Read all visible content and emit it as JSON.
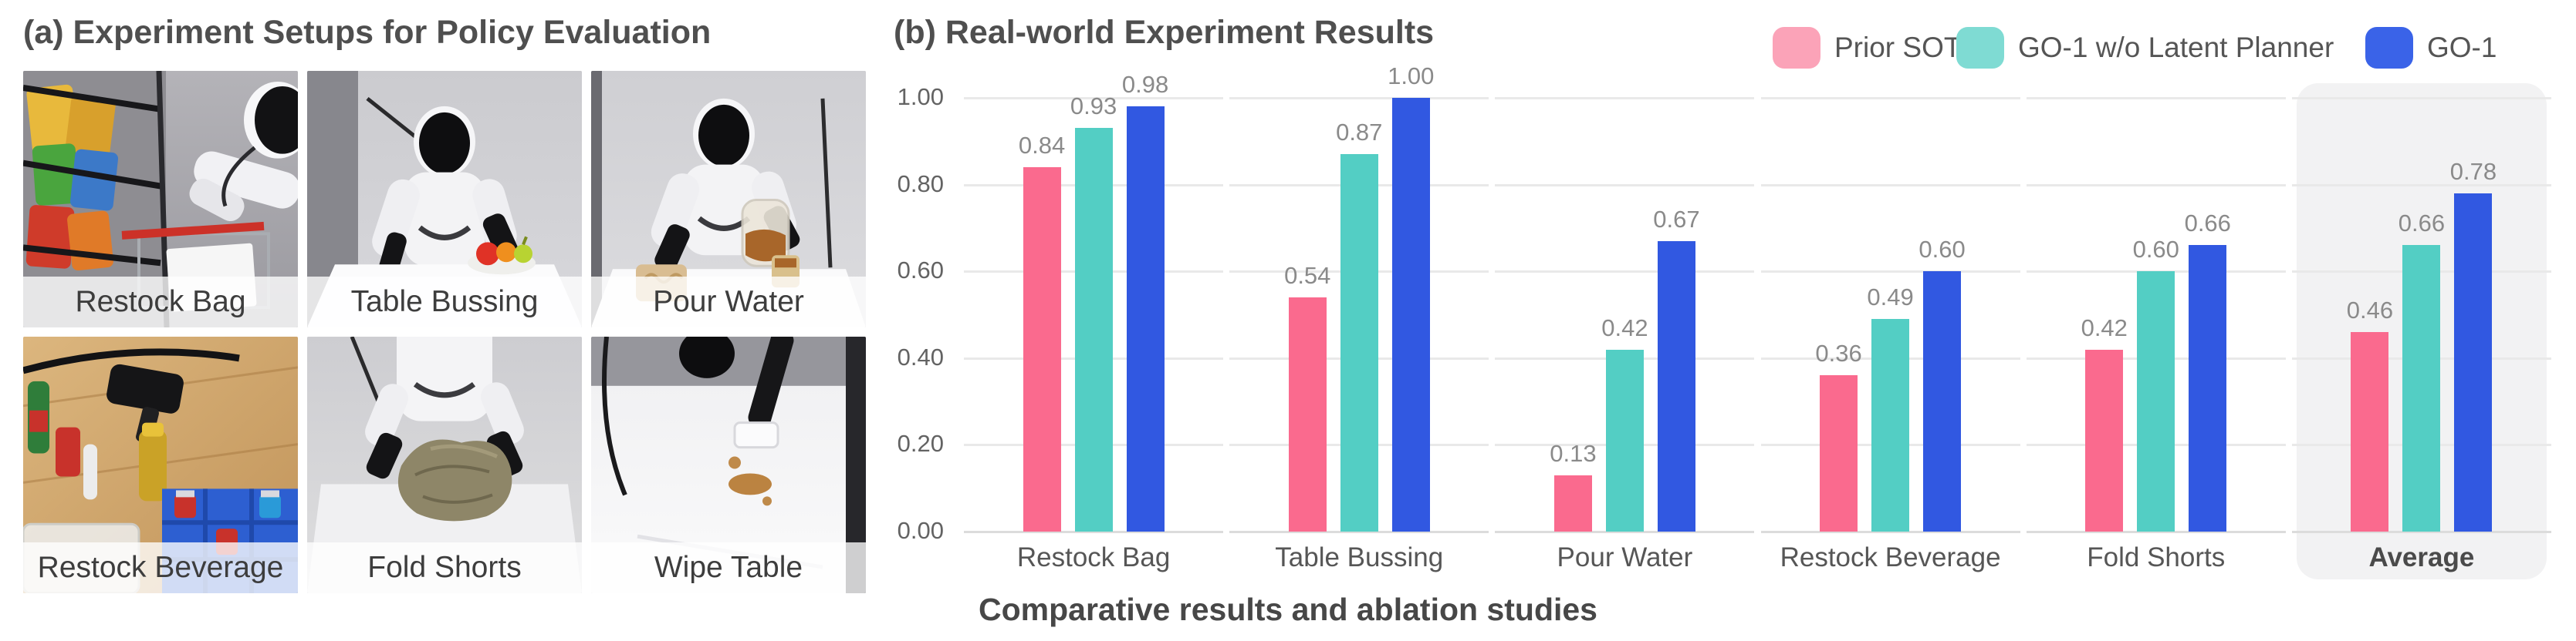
{
  "setups": {
    "title": "(a) Experiment Setups for Policy Evaluation",
    "photos": [
      {
        "label": "Restock Bag"
      },
      {
        "label": "Table Bussing"
      },
      {
        "label": "Pour Water"
      },
      {
        "label": "Restock Beverage"
      },
      {
        "label": "Fold Shorts"
      },
      {
        "label": "Wipe Table"
      }
    ]
  },
  "chart_data": {
    "type": "bar",
    "title": "(b) Real-world Experiment Results",
    "caption": "Comparative results and ablation studies",
    "categories": [
      "Restock Bag",
      "Table Bussing",
      "Pour Water",
      "Restock Beverage",
      "Fold Shorts",
      "Average"
    ],
    "highlighted_category": "Average",
    "series": [
      {
        "name": "Prior SOTA",
        "color": "#FA6A8E",
        "legend_color": "#FBA3B8",
        "values": [
          0.84,
          0.54,
          0.13,
          0.36,
          0.42,
          0.46
        ]
      },
      {
        "name": "GO-1 w/o Latent Planner",
        "color": "#53CEC4",
        "legend_color": "#7FDBD3",
        "values": [
          0.93,
          0.87,
          0.42,
          0.49,
          0.6,
          0.66
        ]
      },
      {
        "name": "GO-1",
        "color": "#3158E1",
        "legend_color": "#3A63E8",
        "values": [
          0.98,
          1.0,
          0.67,
          0.6,
          0.66,
          0.78
        ]
      }
    ],
    "ylim": [
      0,
      1.0
    ],
    "yticks": [
      "0.00",
      "0.20",
      "0.40",
      "0.60",
      "0.80",
      "1.00"
    ],
    "grid": "horizontal-segmented",
    "legend_position": "top-right",
    "value_label_decimals": 2
  }
}
